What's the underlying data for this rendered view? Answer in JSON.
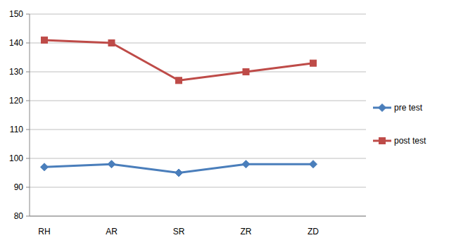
{
  "chart_data": {
    "type": "line",
    "categories": [
      "RH",
      "AR",
      "SR",
      "ZR",
      "ZD"
    ],
    "series": [
      {
        "name": "pre test",
        "color": "#4a7ebb",
        "marker": "diamond",
        "values": [
          97,
          98,
          95,
          98,
          98
        ]
      },
      {
        "name": "post test",
        "color": "#be4b48",
        "marker": "square",
        "values": [
          141,
          140,
          127,
          130,
          133
        ]
      }
    ],
    "ylim": [
      80,
      150
    ],
    "yticks": [
      80,
      90,
      100,
      110,
      120,
      130,
      140,
      150
    ],
    "grid": true,
    "legend": "right"
  }
}
